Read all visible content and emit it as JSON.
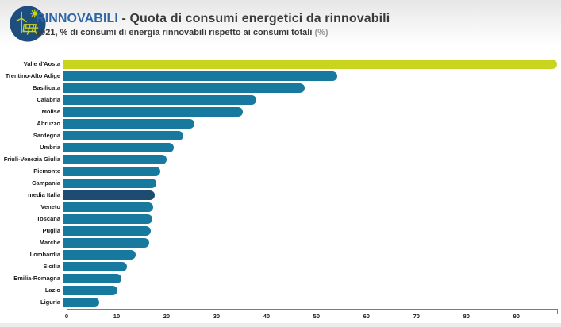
{
  "header": {
    "title_highlight": "RINNOVABILI",
    "title_rest": " - Quota di consumi energetici da rinnovabili",
    "subtitle_main": "2021, % di consumi di energia rinnovabili rispetto ai consumi totali ",
    "subtitle_suffix": "(%)",
    "icon": "renewables-turbine-sun-solar-icon",
    "accent_color": "#2c66a5"
  },
  "chart_data": {
    "type": "bar",
    "orientation": "horizontal",
    "title": "RINNOVABILI - Quota di consumi energetici da rinnovabili",
    "subtitle": "2021, % di consumi di energia rinnovabili rispetto ai consumi totali (%)",
    "xlabel": "",
    "ylabel": "",
    "xlim": [
      0,
      98.3
    ],
    "ticks": [
      0,
      10,
      20,
      30,
      40,
      50,
      60,
      70,
      80,
      90
    ],
    "grid": false,
    "legend": false,
    "categories": [
      "Valle d'Aosta",
      "Trentino-Alto Adige",
      "Basilicata",
      "Calabria",
      "Molise",
      "Abruzzo",
      "Sardegna",
      "Umbria",
      "Friuli-Venezia Giulia",
      "Piemonte",
      "Campania",
      "media Italia",
      "Veneto",
      "Toscana",
      "Puglia",
      "Marche",
      "Lombardia",
      "Sicilia",
      "Emilia-Romagna",
      "Lazio",
      "Liguria"
    ],
    "values": [
      98.1,
      54.4,
      47.9,
      38.3,
      35.6,
      26.0,
      23.8,
      22.0,
      20.5,
      19.3,
      18.5,
      18.2,
      17.9,
      17.6,
      17.4,
      17.1,
      14.3,
      12.6,
      11.5,
      10.7,
      7.1
    ],
    "bar_colors": [
      "#c8d41e",
      "#16799d",
      "#16799d",
      "#16799d",
      "#16799d",
      "#16799d",
      "#16799d",
      "#16799d",
      "#16799d",
      "#16799d",
      "#16799d",
      "#1d4b72",
      "#16799d",
      "#16799d",
      "#16799d",
      "#16799d",
      "#16799d",
      "#16799d",
      "#16799d",
      "#16799d",
      "#16799d"
    ],
    "highlight_notes": {
      "Valle d'Aosta": "#c8d41e",
      "media Italia": "#1d4b72",
      "default": "#16799d"
    }
  }
}
